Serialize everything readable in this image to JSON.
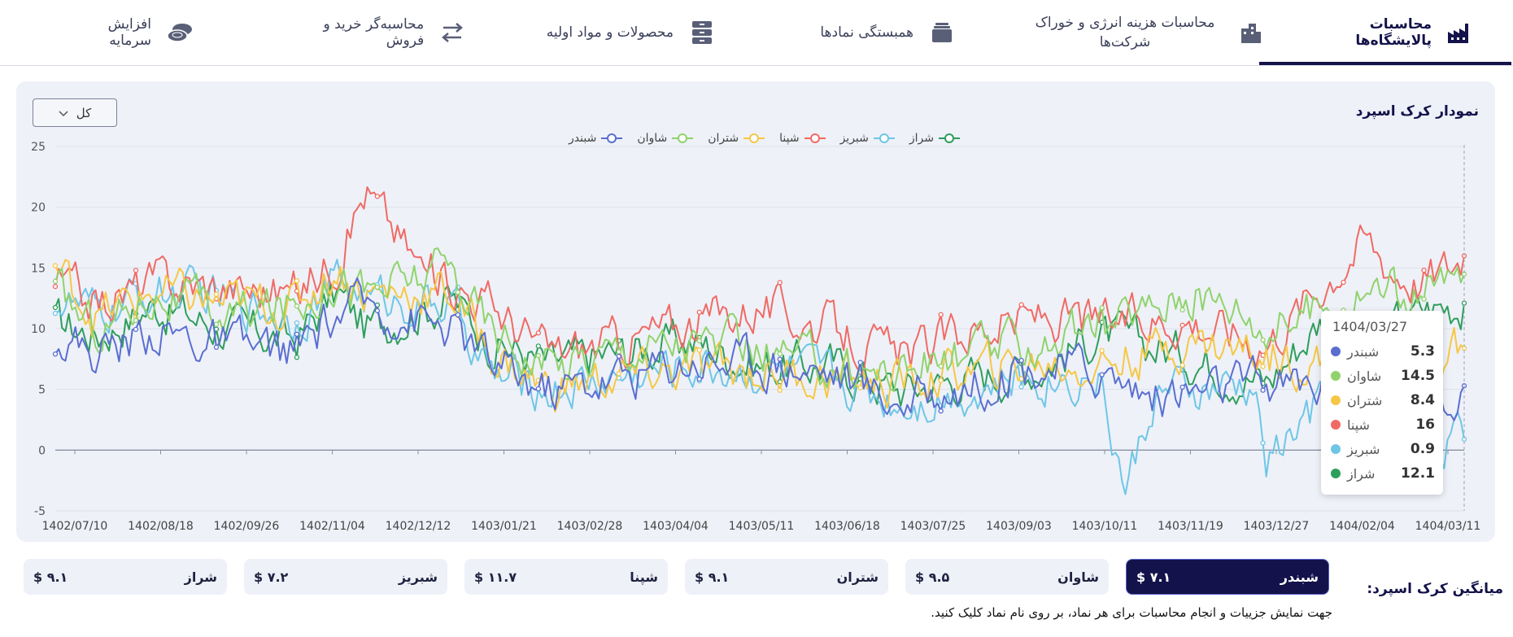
{
  "tabs": [
    {
      "label": "محاسبات پالایشگاه‌ها",
      "icon": "refinery-icon",
      "active": true
    },
    {
      "label": "محاسبات هزینه انرژی و خوراک شرکت‌ها",
      "icon": "buildings-icon"
    },
    {
      "label": "همبستگی نمادها",
      "icon": "layers-icon"
    },
    {
      "label": "محصولات و مواد اولیه",
      "icon": "database-icon"
    },
    {
      "label": "محاسبه‌گر خرید و فروش",
      "icon": "swap-arrows-icon"
    },
    {
      "label": "افزایش سرمایه",
      "icon": "coins-icon"
    }
  ],
  "chart": {
    "title": "نمودار کرک اسپرد",
    "range_select": "کل"
  },
  "chart_data": {
    "type": "line",
    "x_ticks": [
      "1402/07/10",
      "1402/08/18",
      "1402/09/26",
      "1402/11/04",
      "1402/12/12",
      "1403/01/21",
      "1403/02/28",
      "1403/04/04",
      "1403/05/11",
      "1403/06/18",
      "1403/07/25",
      "1403/09/03",
      "1403/10/11",
      "1403/11/19",
      "1403/12/27",
      "1404/02/04",
      "1404/03/11"
    ],
    "y_ticks": [
      "25",
      "20",
      "15",
      "10",
      "5",
      "0",
      "-5"
    ],
    "ylim": [
      -5,
      25
    ],
    "grid": true,
    "legend_position": "top-center",
    "series": [
      {
        "name": "شراز",
        "color": "#2e9e5b",
        "anchors": [
          [
            0,
            10.5
          ],
          [
            0.03,
            9.5
          ],
          [
            0.07,
            12
          ],
          [
            0.12,
            10
          ],
          [
            0.17,
            9
          ],
          [
            0.2,
            13
          ],
          [
            0.22,
            10
          ],
          [
            0.28,
            12.5
          ],
          [
            0.31,
            9
          ],
          [
            0.35,
            7
          ],
          [
            0.4,
            8
          ],
          [
            0.45,
            9
          ],
          [
            0.5,
            7
          ],
          [
            0.55,
            7
          ],
          [
            0.6,
            5
          ],
          [
            0.65,
            6
          ],
          [
            0.7,
            7
          ],
          [
            0.74,
            9.5
          ],
          [
            0.8,
            8
          ],
          [
            0.86,
            5.5
          ],
          [
            0.9,
            11
          ],
          [
            0.94,
            9.5
          ],
          [
            0.97,
            11.5
          ],
          [
            1,
            12.1
          ]
        ]
      },
      {
        "name": "شبریز",
        "color": "#6ec6e6",
        "anchors": [
          [
            0,
            12.5
          ],
          [
            0.03,
            11
          ],
          [
            0.07,
            13
          ],
          [
            0.12,
            12.5
          ],
          [
            0.17,
            11
          ],
          [
            0.2,
            14
          ],
          [
            0.22,
            12.5
          ],
          [
            0.28,
            12
          ],
          [
            0.31,
            6
          ],
          [
            0.35,
            5
          ],
          [
            0.4,
            6
          ],
          [
            0.45,
            7
          ],
          [
            0.5,
            6.5
          ],
          [
            0.55,
            6
          ],
          [
            0.6,
            4
          ],
          [
            0.65,
            5
          ],
          [
            0.7,
            6
          ],
          [
            0.74,
            6
          ],
          [
            0.76,
            -3.5
          ],
          [
            0.78,
            4.5
          ],
          [
            0.85,
            5
          ],
          [
            0.86,
            -1
          ],
          [
            0.9,
            4
          ],
          [
            0.94,
            2
          ],
          [
            0.97,
            1
          ],
          [
            1,
            0.9
          ]
        ]
      },
      {
        "name": "شپنا",
        "color": "#f06a64",
        "anchors": [
          [
            0,
            14
          ],
          [
            0.03,
            12
          ],
          [
            0.07,
            14
          ],
          [
            0.12,
            13.5
          ],
          [
            0.17,
            13
          ],
          [
            0.2,
            16
          ],
          [
            0.22,
            21.5
          ],
          [
            0.26,
            15
          ],
          [
            0.28,
            14
          ],
          [
            0.31,
            12
          ],
          [
            0.35,
            8
          ],
          [
            0.4,
            9
          ],
          [
            0.45,
            10.5
          ],
          [
            0.5,
            12
          ],
          [
            0.55,
            10
          ],
          [
            0.6,
            7.5
          ],
          [
            0.65,
            10
          ],
          [
            0.7,
            11
          ],
          [
            0.74,
            10.5
          ],
          [
            0.8,
            11
          ],
          [
            0.86,
            9
          ],
          [
            0.9,
            14
          ],
          [
            0.93,
            17.5
          ],
          [
            0.95,
            15
          ],
          [
            0.97,
            14
          ],
          [
            1,
            16
          ]
        ]
      },
      {
        "name": "شتران",
        "color": "#f6c744",
        "anchors": [
          [
            0,
            15
          ],
          [
            0.03,
            11
          ],
          [
            0.07,
            13
          ],
          [
            0.12,
            12
          ],
          [
            0.17,
            12
          ],
          [
            0.2,
            15
          ],
          [
            0.22,
            13
          ],
          [
            0.28,
            13
          ],
          [
            0.31,
            8
          ],
          [
            0.35,
            5
          ],
          [
            0.4,
            6
          ],
          [
            0.45,
            6.5
          ],
          [
            0.5,
            6.5
          ],
          [
            0.55,
            6
          ],
          [
            0.6,
            5.5
          ],
          [
            0.65,
            6.5
          ],
          [
            0.7,
            7
          ],
          [
            0.74,
            7
          ],
          [
            0.8,
            9
          ],
          [
            0.86,
            8
          ],
          [
            0.9,
            7
          ],
          [
            0.94,
            7.5
          ],
          [
            0.97,
            6.5
          ],
          [
            1,
            8.4
          ]
        ]
      },
      {
        "name": "شاوان",
        "color": "#8fd36b",
        "anchors": [
          [
            0,
            13
          ],
          [
            0.03,
            10
          ],
          [
            0.07,
            13
          ],
          [
            0.12,
            11
          ],
          [
            0.17,
            12
          ],
          [
            0.2,
            14.5
          ],
          [
            0.22,
            13
          ],
          [
            0.28,
            15
          ],
          [
            0.31,
            10
          ],
          [
            0.35,
            7
          ],
          [
            0.4,
            8.5
          ],
          [
            0.45,
            9
          ],
          [
            0.5,
            8
          ],
          [
            0.55,
            7
          ],
          [
            0.6,
            6.5
          ],
          [
            0.65,
            8
          ],
          [
            0.7,
            9
          ],
          [
            0.74,
            10
          ],
          [
            0.8,
            13
          ],
          [
            0.84,
            12
          ],
          [
            0.86,
            10
          ],
          [
            0.9,
            12
          ],
          [
            0.94,
            13.5
          ],
          [
            0.97,
            12.5
          ],
          [
            1,
            14.5
          ]
        ]
      },
      {
        "name": "شبندر",
        "color": "#5a6ed1",
        "anchors": [
          [
            0,
            9.5
          ],
          [
            0.03,
            8
          ],
          [
            0.07,
            10
          ],
          [
            0.12,
            8.5
          ],
          [
            0.17,
            8
          ],
          [
            0.2,
            11
          ],
          [
            0.22,
            12
          ],
          [
            0.28,
            10
          ],
          [
            0.31,
            7
          ],
          [
            0.35,
            5
          ],
          [
            0.4,
            6
          ],
          [
            0.45,
            7.5
          ],
          [
            0.5,
            7.5
          ],
          [
            0.55,
            6.5
          ],
          [
            0.6,
            4
          ],
          [
            0.65,
            5.5
          ],
          [
            0.7,
            7
          ],
          [
            0.74,
            6.5
          ],
          [
            0.78,
            4.5
          ],
          [
            0.86,
            5.5
          ],
          [
            0.9,
            5.5
          ],
          [
            0.94,
            5
          ],
          [
            0.97,
            5.2
          ],
          [
            1,
            5.3
          ]
        ]
      }
    ]
  },
  "tooltip": {
    "date": "1404/03/27",
    "rows": [
      {
        "name": "شبندر",
        "value": "5.3",
        "color": "#5a6ed1"
      },
      {
        "name": "شاوان",
        "value": "14.5",
        "color": "#8fd36b"
      },
      {
        "name": "شتران",
        "value": "8.4",
        "color": "#f6c744"
      },
      {
        "name": "شپنا",
        "value": "16",
        "color": "#f06a64"
      },
      {
        "name": "شبریز",
        "value": "0.9",
        "color": "#6ec6e6"
      },
      {
        "name": "شراز",
        "value": "12.1",
        "color": "#2e9e5b"
      }
    ]
  },
  "averages": {
    "label": "میانگین کرک اسپرد:",
    "cards": [
      {
        "name": "شبندر",
        "value": "$ ۷.۱",
        "active": true
      },
      {
        "name": "شاوان",
        "value": "$ ۹.۵"
      },
      {
        "name": "شتران",
        "value": "$ ۹.۱"
      },
      {
        "name": "شپنا",
        "value": "$ ۱۱.۷"
      },
      {
        "name": "شبریز",
        "value": "$ ۷.۲"
      },
      {
        "name": "شراز",
        "value": "$ ۹.۱"
      }
    ],
    "hint": "جهت نمایش جزییات و انجام محاسبات برای هر نماد، بر روی نام نماد کلیک کنید."
  }
}
